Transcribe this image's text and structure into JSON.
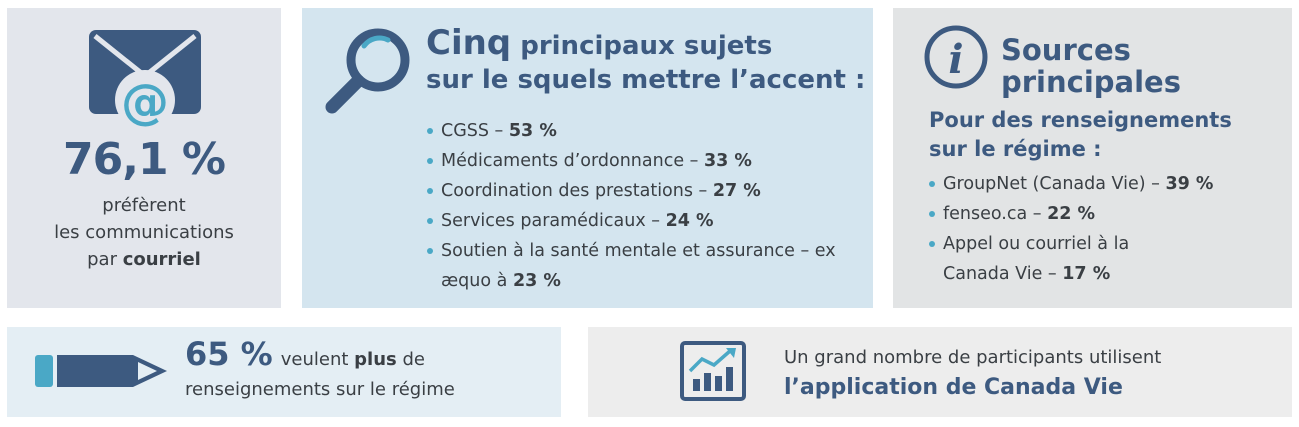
{
  "colors": {
    "navy": "#3d5a80",
    "teal": "#4aa8c6",
    "text": "#3a3f44"
  },
  "email_panel": {
    "icon": "envelope-at-icon",
    "percent": "76,1 %",
    "line1": "préfèrent",
    "line2": "les communications",
    "line3_prefix": "par ",
    "line3_bold": "courriel"
  },
  "topics_panel": {
    "icon": "magnifier-icon",
    "title_first": "Cinq",
    "title_rest": " principaux sujets",
    "title_line2": "sur le squels mettre l’accent :",
    "items": [
      {
        "label": "CGSS – ",
        "value": "53 %"
      },
      {
        "label": "Médicaments d’ordonnance – ",
        "value": "33 %"
      },
      {
        "label": "Coordination des prestations – ",
        "value": "27 %"
      },
      {
        "label": "Services paramédicaux – ",
        "value": "24 %"
      },
      {
        "label": "Soutien à la santé mentale et assurance – ex æquo à ",
        "value": "23 %"
      }
    ]
  },
  "sources_panel": {
    "icon": "info-icon",
    "title_line1": "Sources",
    "title_line2": "principales",
    "sub_line1": "Pour des renseignements",
    "sub_line2": "sur le régime :",
    "items": [
      {
        "label": "GroupNet (Canada Vie) – ",
        "value": "39 %"
      },
      {
        "label": "fenseo.ca – ",
        "value": "22 %"
      },
      {
        "label": "Appel ou courriel à la Canada Vie – ",
        "value": "17 %"
      }
    ]
  },
  "more_panel": {
    "icon": "pencil-icon",
    "percent": "65 %",
    "text_prefix": "veulent ",
    "text_bold": "plus",
    "text_suffix": " de",
    "line2": "renseignements sur le régime"
  },
  "app_panel": {
    "icon": "growth-chart-icon",
    "line1": "Un grand nombre de participants utilisent",
    "line2": "l’application de Canada Vie"
  }
}
